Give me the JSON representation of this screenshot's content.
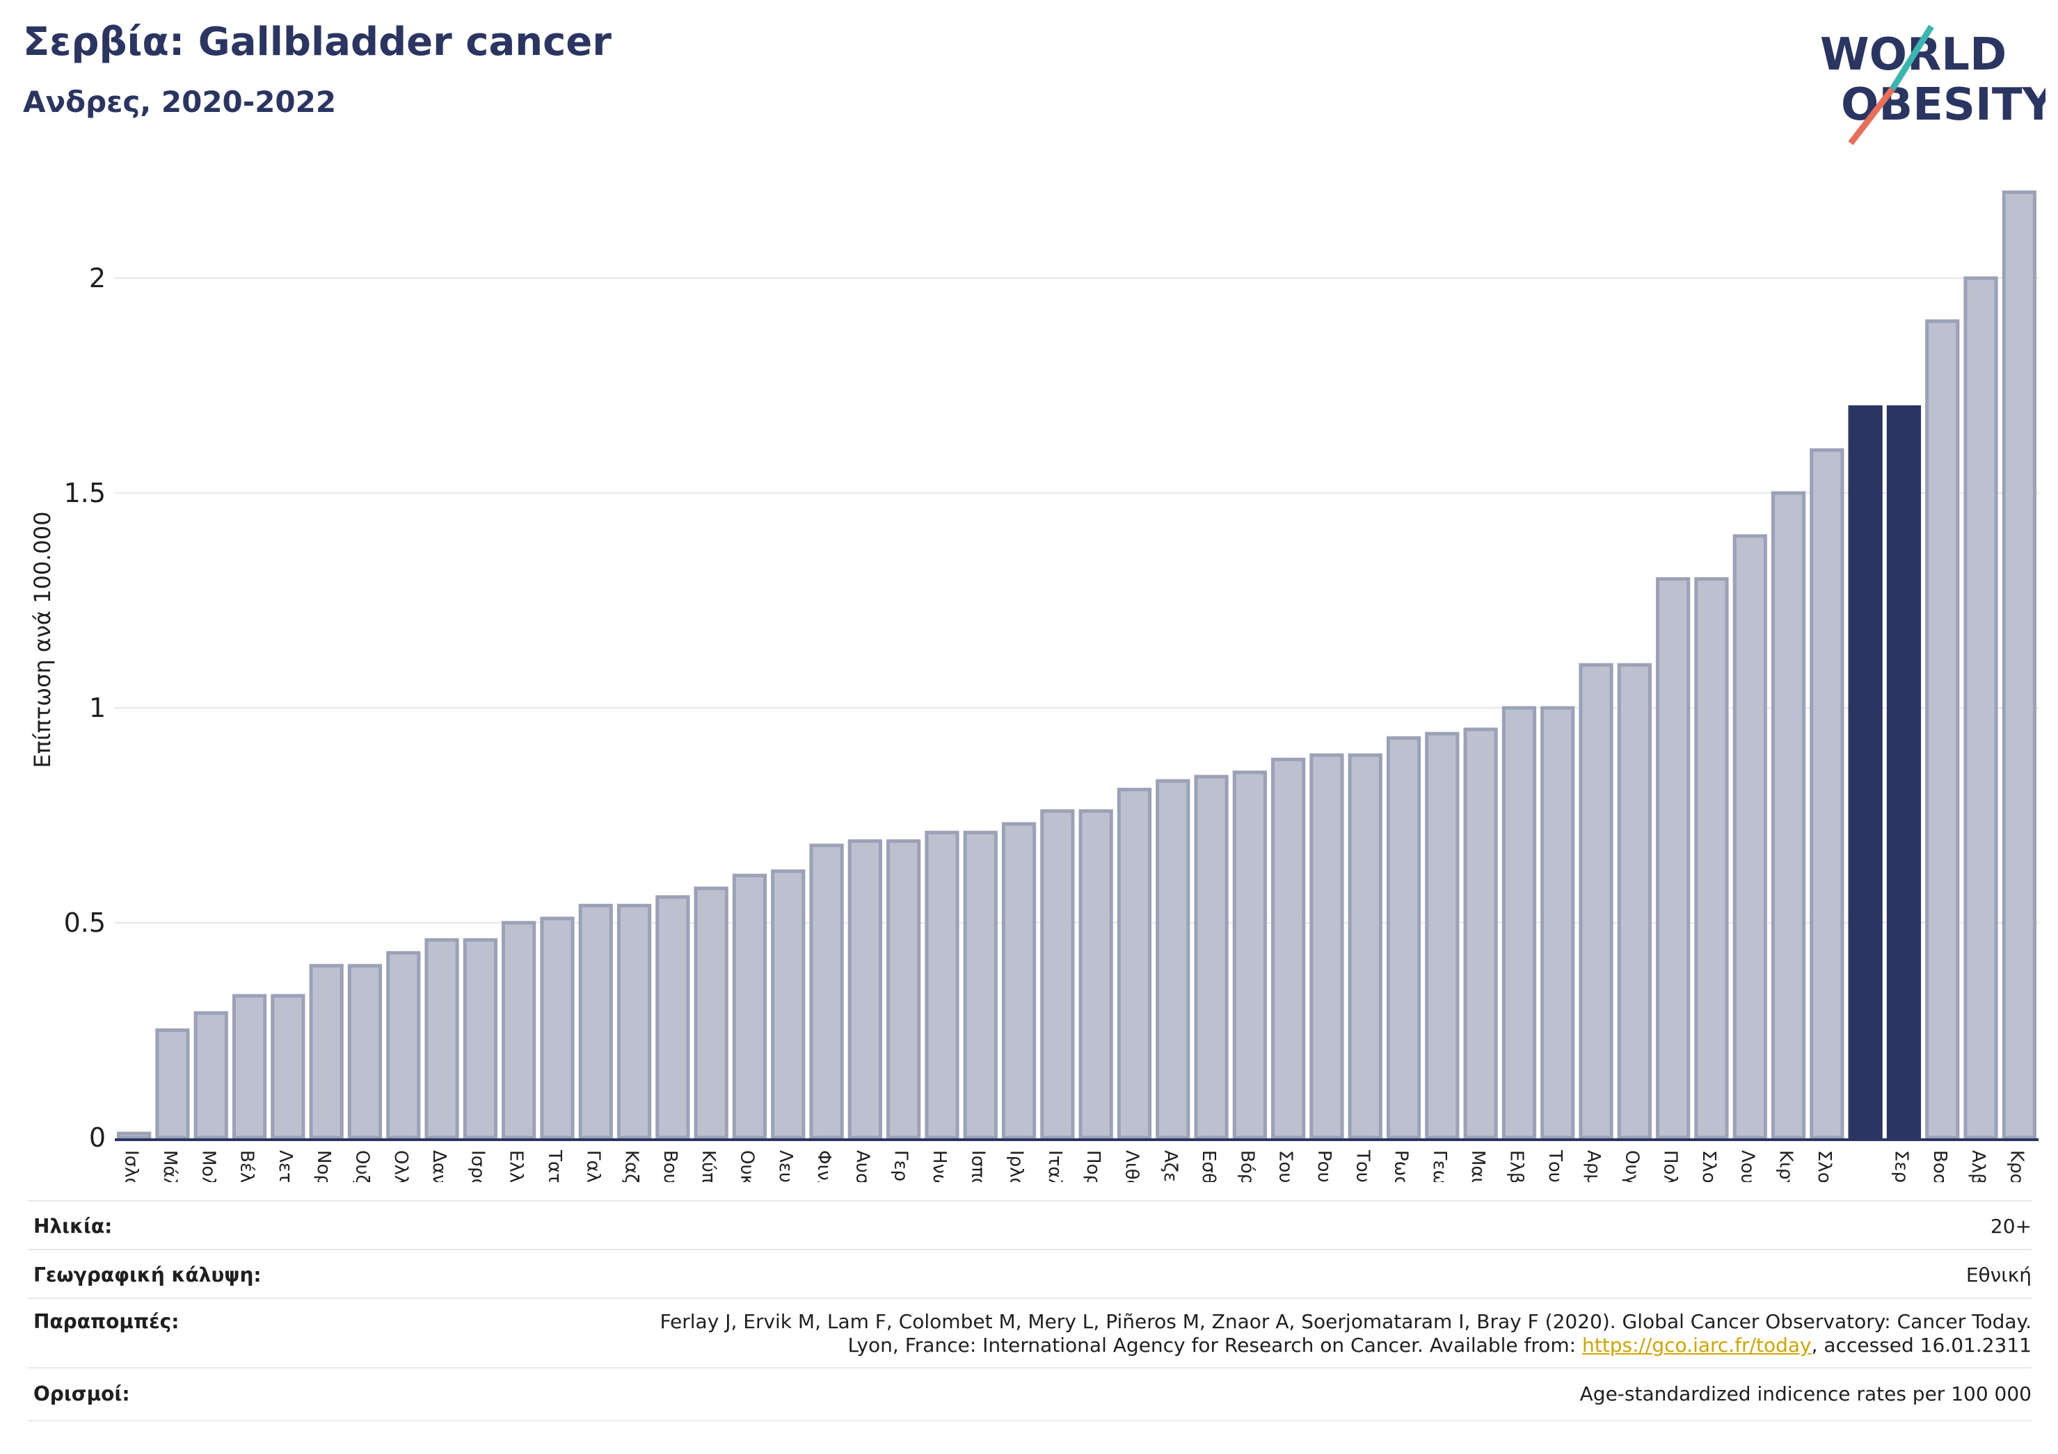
{
  "header": {
    "title": "Σερβία: Gallbladder cancer",
    "subtitle": "Ανδρες, 2020-2022"
  },
  "logo": {
    "line1": "WORLD",
    "line2": "OBESITY"
  },
  "colors": {
    "bar": "#bcc0cf",
    "bar_stroke": "#9ba1b7",
    "highlight": "#2b3561",
    "title": "#2b3561",
    "grid": "#e5e7ec",
    "logo_teal": "#3ab5b0",
    "logo_coral": "#e8705a"
  },
  "chart_data": {
    "type": "bar",
    "ylabel": "Επίπτωση ανά 100.000",
    "ylim": [
      0,
      2.2
    ],
    "yticks": [
      0,
      0.5,
      1,
      1.5,
      2
    ],
    "grid": true,
    "categories": [
      "Ισλανδία",
      "Μάλτα",
      "Μολδαβία",
      "Βέλγιο",
      "Λετονία",
      "Νορβηγία",
      "Ουζμπεκιστάν",
      "Ολλανδία",
      "Δανία",
      "Ισραήλ",
      "Ελλάδα",
      "Τατζικιστάν",
      "Γαλλία",
      "Καζακστάν",
      "Βουλγαρία",
      "Κύπρος",
      "Ουκρανία",
      "Λευκορωσία",
      "Φινλανδία",
      "Αυστρία",
      "Γερμανία",
      "Ηνωμένο Βασίλειο",
      "Ισπανία",
      "Ιρλανδία",
      "Ιταλία",
      "Πορτογαλία",
      "Λιθουανία",
      "Αζερμπαϊτζάν",
      "Εσθονία",
      "Βόρεια Μακεδονία",
      "Σουηδία",
      "Ρουμανία",
      "Τουρκία",
      "Ρωσική Ομοσπονδία",
      "Γεωργία",
      "Μαυροβούνιο",
      "Ελβετία",
      "Τουρκμενιστάν",
      "Αρμενία",
      "Ουγγαρία",
      "Πολωνία",
      "Σλοβακία",
      "Λουξεμβούργο",
      "Κιργιστάν",
      "Σλοβενία",
      "",
      "Σερβία",
      "Βοσνία και Ερζεγοβίνη",
      "Αλβανία",
      "Κροατία"
    ],
    "values": [
      0.0,
      0.25,
      0.29,
      0.33,
      0.33,
      0.4,
      0.4,
      0.43,
      0.46,
      0.46,
      0.5,
      0.51,
      0.54,
      0.54,
      0.56,
      0.58,
      0.61,
      0.62,
      0.68,
      0.69,
      0.69,
      0.71,
      0.71,
      0.73,
      0.76,
      0.76,
      0.81,
      0.83,
      0.84,
      0.85,
      0.88,
      0.89,
      0.89,
      0.93,
      0.94,
      0.95,
      1.0,
      1.0,
      1.1,
      1.1,
      1.3,
      1.3,
      1.4,
      1.5,
      1.6,
      1.7,
      1.7,
      1.9,
      2.0,
      2.2
    ],
    "highlight_indices": [
      45,
      46
    ]
  },
  "info": {
    "age_label": "Ηλικία:",
    "age_value": "20+",
    "coverage_label": "Γεωγραφική κάλυψη:",
    "coverage_value": "Εθνική",
    "refs_label": "Παραπομπές:",
    "refs_line1": "Ferlay J, Ervik M, Lam F, Colombet M, Mery L, Piñeros M, Znaor A, Soerjomataram I, Bray F (2020). Global Cancer Observatory: Cancer Today.",
    "refs_line2_pre": "Lyon, France: International Agency for Research on Cancer. Available from: ",
    "refs_link": "https://gco.iarc.fr/today",
    "refs_line2_post": ", accessed 16.01.2311",
    "defs_label": "Ορισμοί:",
    "defs_value": "Age-standardized indicence rates per 100 000"
  }
}
